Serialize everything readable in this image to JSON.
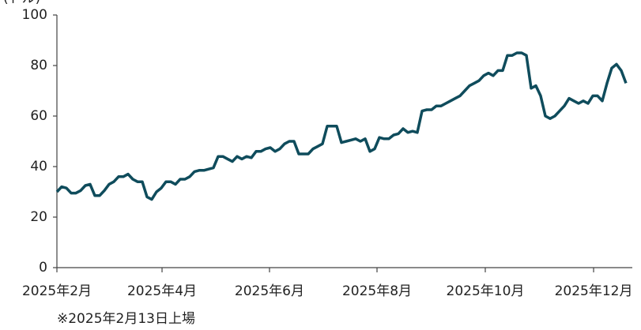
{
  "chart_data": {
    "type": "line",
    "y_label": "(ドル)",
    "footnote": "※2025年2月13日上場",
    "color": "#0f4c5c",
    "xlim": [
      0,
      120
    ],
    "xticks": [
      {
        "value": 0,
        "label": "2025年2月"
      },
      {
        "value": 22.17,
        "label": "2025年4月"
      },
      {
        "value": 44.83,
        "label": "2025年6月"
      },
      {
        "value": 67.5,
        "label": "2025年8月"
      },
      {
        "value": 90.33,
        "label": "2025年10月"
      },
      {
        "value": 113.17,
        "label": "2025年12月"
      }
    ],
    "ylim": [
      0,
      100
    ],
    "yticks": [
      0,
      20,
      40,
      60,
      80,
      100
    ],
    "x": [
      0,
      1,
      2,
      3,
      4,
      5,
      6,
      7,
      8,
      9,
      10,
      11,
      12,
      13,
      14,
      15,
      16,
      17,
      18,
      19,
      20,
      21,
      22,
      23,
      24,
      25,
      26,
      27,
      28,
      29,
      30,
      31,
      32,
      33,
      34,
      35,
      36,
      37,
      38,
      39,
      40,
      41,
      42,
      43,
      44,
      45,
      46,
      47,
      48,
      49,
      50,
      51,
      52,
      53,
      54,
      55,
      56,
      57,
      58,
      59,
      60,
      61,
      62,
      63,
      64,
      65,
      66,
      67,
      68,
      69,
      70,
      71,
      72,
      73,
      74,
      75,
      76,
      77,
      78,
      79,
      80,
      81,
      82,
      83,
      84,
      85,
      86,
      87,
      88,
      89,
      90,
      91,
      92,
      93,
      94,
      95,
      96,
      97,
      98,
      99,
      100,
      101,
      102,
      103,
      104,
      105,
      106,
      107,
      108,
      109,
      110,
      111,
      112,
      113,
      114,
      115,
      116,
      117,
      118,
      119,
      120
    ],
    "values": [
      30,
      32,
      31.5,
      29.5,
      29.5,
      30.5,
      32.5,
      33,
      28.5,
      28.5,
      30.5,
      33,
      34,
      36,
      36,
      37,
      35,
      34,
      34,
      28,
      27,
      30,
      31.5,
      34,
      34,
      33,
      35,
      35,
      36,
      38,
      38.5,
      38.5,
      39,
      39.5,
      44,
      44,
      43,
      42,
      44,
      43,
      44,
      43.5,
      46,
      46,
      47,
      47.5,
      46,
      47,
      49,
      50,
      50,
      45,
      45,
      45,
      47,
      48,
      49,
      56,
      56,
      56,
      49.5,
      50,
      50.5,
      51,
      50,
      51,
      46,
      47,
      51.5,
      51,
      51,
      52.5,
      53,
      55,
      53.5,
      54,
      53.5,
      62,
      62.5,
      62.5,
      64,
      64,
      65,
      66,
      67,
      68,
      70,
      72,
      73,
      74,
      76,
      77,
      76,
      78,
      78,
      84,
      84,
      85,
      85,
      84,
      71,
      72,
      68,
      60,
      59,
      60,
      62,
      64,
      67,
      66,
      65,
      66,
      65,
      68,
      68,
      66,
      73,
      79,
      80.5,
      78,
      73
    ]
  }
}
